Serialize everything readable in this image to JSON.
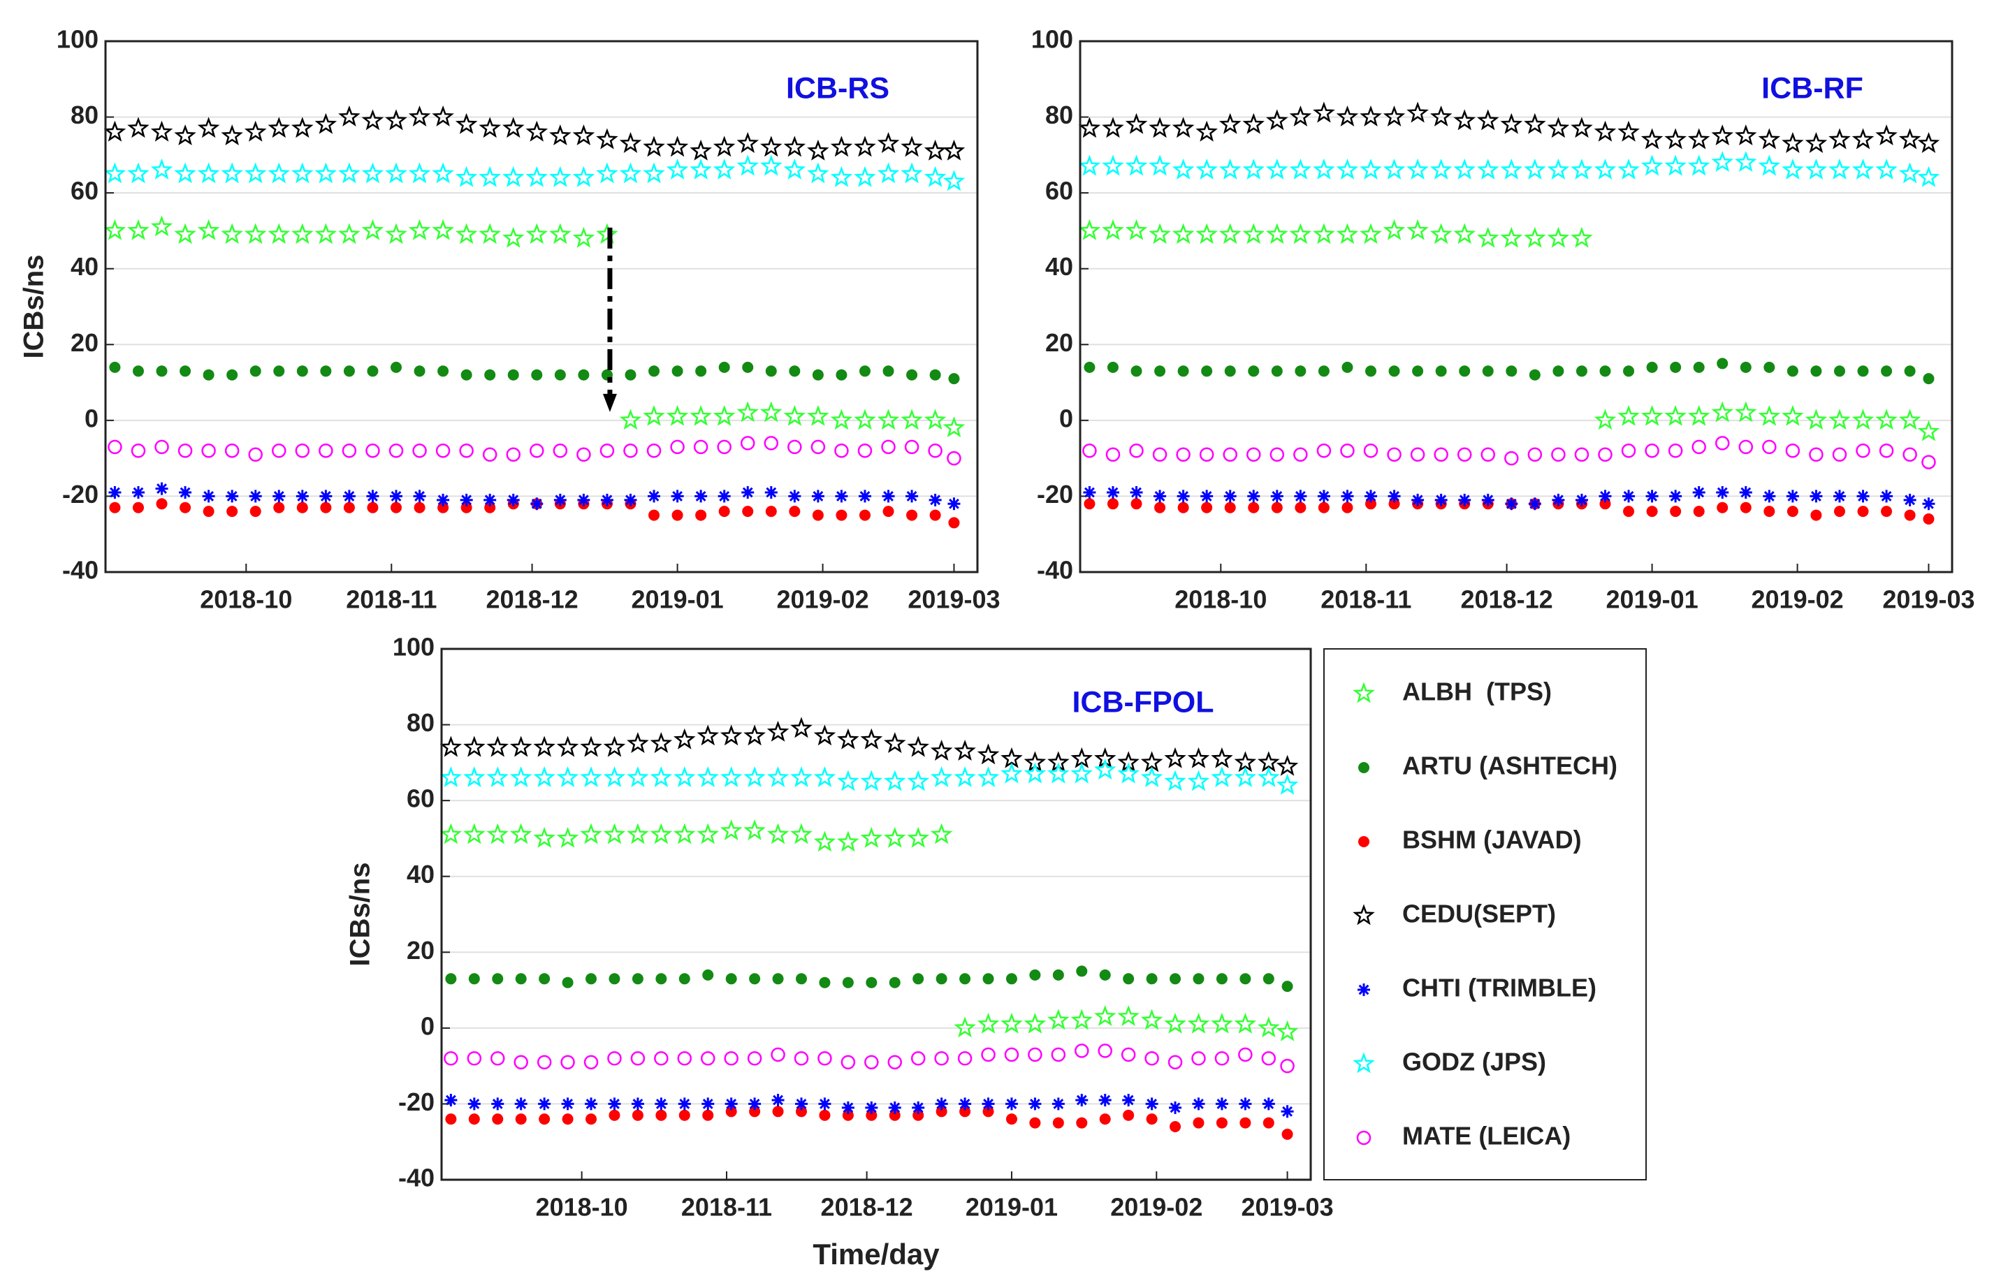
{
  "chart_data": [
    {
      "type": "scatter",
      "title": "ICB-RS",
      "ylabel": "ICBs/ns",
      "x": [
        2,
        7,
        12,
        17,
        22,
        27,
        32,
        37,
        42,
        47,
        52,
        57,
        62,
        67,
        72,
        77,
        82,
        87,
        92,
        97,
        102,
        107,
        112,
        117,
        122,
        127,
        132,
        137,
        142,
        147,
        152,
        157,
        162,
        167,
        172,
        177,
        181
      ],
      "xlim": [
        0,
        186
      ],
      "xticks": [
        {
          "value": 30,
          "label": "2018-10"
        },
        {
          "value": 61,
          "label": "2018-11"
        },
        {
          "value": 91,
          "label": "2018-12"
        },
        {
          "value": 122,
          "label": "2019-01"
        },
        {
          "value": 153,
          "label": "2019-02"
        },
        {
          "value": 181,
          "label": "2019-03"
        }
      ],
      "ylim": [
        -40,
        100
      ],
      "yticks": [
        -40,
        -20,
        0,
        20,
        40,
        60,
        80,
        100
      ],
      "grid": true,
      "series": [
        {
          "color": "#33ff33",
          "marker": "star",
          "values": [
            50,
            50,
            51,
            49,
            50,
            49,
            49,
            49,
            49,
            49,
            49,
            50,
            49,
            50,
            50,
            49,
            49,
            48,
            49,
            49,
            48,
            49,
            0,
            1,
            1,
            1,
            1,
            2,
            2,
            1,
            1,
            0,
            0,
            0,
            0,
            0,
            -2
          ]
        },
        {
          "color": "#138a13",
          "marker": "dot",
          "values": [
            14,
            13,
            13,
            13,
            12,
            12,
            13,
            13,
            13,
            13,
            13,
            13,
            14,
            13,
            13,
            12,
            12,
            12,
            12,
            12,
            12,
            12,
            12,
            13,
            13,
            13,
            14,
            14,
            13,
            13,
            12,
            12,
            13,
            13,
            12,
            12,
            11
          ]
        },
        {
          "color": "#ff0000",
          "marker": "dot",
          "values": [
            -23,
            -23,
            -22,
            -23,
            -24,
            -24,
            -24,
            -23,
            -23,
            -23,
            -23,
            -23,
            -23,
            -23,
            -23,
            -23,
            -23,
            -22,
            -22,
            -22,
            -22,
            -22,
            -22,
            -25,
            -25,
            -25,
            -24,
            -24,
            -24,
            -24,
            -25,
            -25,
            -25,
            -24,
            -25,
            -25,
            -27
          ]
        },
        {
          "color": "#000000",
          "marker": "star",
          "values": [
            76,
            77,
            76,
            75,
            77,
            75,
            76,
            77,
            77,
            78,
            80,
            79,
            79,
            80,
            80,
            78,
            77,
            77,
            76,
            75,
            75,
            74,
            73,
            72,
            72,
            71,
            72,
            73,
            72,
            72,
            71,
            72,
            72,
            73,
            72,
            71,
            71
          ]
        },
        {
          "color": "#0000ff",
          "marker": "asterisk",
          "values": [
            -19,
            -19,
            -18,
            -19,
            -20,
            -20,
            -20,
            -20,
            -20,
            -20,
            -20,
            -20,
            -20,
            -20,
            -21,
            -21,
            -21,
            -21,
            -22,
            -21,
            -21,
            -21,
            -21,
            -20,
            -20,
            -20,
            -20,
            -19,
            -19,
            -20,
            -20,
            -20,
            -20,
            -20,
            -20,
            -21,
            -22
          ]
        },
        {
          "color": "#00ffff",
          "marker": "star",
          "values": [
            65,
            65,
            66,
            65,
            65,
            65,
            65,
            65,
            65,
            65,
            65,
            65,
            65,
            65,
            65,
            64,
            64,
            64,
            64,
            64,
            64,
            65,
            65,
            65,
            66,
            66,
            66,
            67,
            67,
            66,
            65,
            64,
            64,
            65,
            65,
            64,
            63
          ]
        },
        {
          "color": "#ff00ff",
          "marker": "ring",
          "values": [
            -7,
            -8,
            -7,
            -8,
            -8,
            -8,
            -9,
            -8,
            -8,
            -8,
            -8,
            -8,
            -8,
            -8,
            -8,
            -8,
            -9,
            -9,
            -8,
            -8,
            -9,
            -8,
            -8,
            -8,
            -7,
            -7,
            -7,
            -6,
            -6,
            -7,
            -7,
            -8,
            -8,
            -7,
            -7,
            -8,
            -10
          ]
        }
      ]
    },
    {
      "type": "scatter",
      "title": "ICB-RF",
      "x": [
        2,
        7,
        12,
        17,
        22,
        27,
        32,
        37,
        42,
        47,
        52,
        57,
        62,
        67,
        72,
        77,
        82,
        87,
        92,
        97,
        102,
        107,
        112,
        117,
        122,
        127,
        132,
        137,
        142,
        147,
        152,
        157,
        162,
        167,
        172,
        177,
        181
      ],
      "xlim": [
        0,
        186
      ],
      "xticks": [
        {
          "value": 30,
          "label": "2018-10"
        },
        {
          "value": 61,
          "label": "2018-11"
        },
        {
          "value": 91,
          "label": "2018-12"
        },
        {
          "value": 122,
          "label": "2019-01"
        },
        {
          "value": 153,
          "label": "2019-02"
        },
        {
          "value": 181,
          "label": "2019-03"
        }
      ],
      "ylim": [
        -40,
        100
      ],
      "yticks": [
        -40,
        -20,
        0,
        20,
        40,
        60,
        80,
        100
      ],
      "grid": true,
      "series": [
        {
          "color": "#33ff33",
          "marker": "star",
          "values": [
            50,
            50,
            50,
            49,
            49,
            49,
            49,
            49,
            49,
            49,
            49,
            49,
            49,
            50,
            50,
            49,
            49,
            48,
            48,
            48,
            48,
            48,
            0,
            1,
            1,
            1,
            1,
            2,
            2,
            1,
            1,
            0,
            0,
            0,
            0,
            0,
            -3
          ]
        },
        {
          "color": "#138a13",
          "marker": "dot",
          "values": [
            14,
            14,
            13,
            13,
            13,
            13,
            13,
            13,
            13,
            13,
            13,
            14,
            13,
            13,
            13,
            13,
            13,
            13,
            13,
            12,
            13,
            13,
            13,
            13,
            14,
            14,
            14,
            15,
            14,
            14,
            13,
            13,
            13,
            13,
            13,
            13,
            11
          ]
        },
        {
          "color": "#ff0000",
          "marker": "dot",
          "values": [
            -22,
            -22,
            -22,
            -23,
            -23,
            -23,
            -23,
            -23,
            -23,
            -23,
            -23,
            -23,
            -22,
            -22,
            -22,
            -22,
            -22,
            -22,
            -22,
            -22,
            -22,
            -22,
            -22,
            -24,
            -24,
            -24,
            -24,
            -23,
            -23,
            -24,
            -24,
            -25,
            -24,
            -24,
            -24,
            -25,
            -26
          ]
        },
        {
          "color": "#000000",
          "marker": "star",
          "values": [
            77,
            77,
            78,
            77,
            77,
            76,
            78,
            78,
            79,
            80,
            81,
            80,
            80,
            80,
            81,
            80,
            79,
            79,
            78,
            78,
            77,
            77,
            76,
            76,
            74,
            74,
            74,
            75,
            75,
            74,
            73,
            73,
            74,
            74,
            75,
            74,
            73
          ]
        },
        {
          "color": "#0000ff",
          "marker": "asterisk",
          "values": [
            -19,
            -19,
            -19,
            -20,
            -20,
            -20,
            -20,
            -20,
            -20,
            -20,
            -20,
            -20,
            -20,
            -20,
            -21,
            -21,
            -21,
            -21,
            -22,
            -22,
            -21,
            -21,
            -20,
            -20,
            -20,
            -20,
            -19,
            -19,
            -19,
            -20,
            -20,
            -20,
            -20,
            -20,
            -20,
            -21,
            -22
          ]
        },
        {
          "color": "#00ffff",
          "marker": "star",
          "values": [
            67,
            67,
            67,
            67,
            66,
            66,
            66,
            66,
            66,
            66,
            66,
            66,
            66,
            66,
            66,
            66,
            66,
            66,
            66,
            66,
            66,
            66,
            66,
            66,
            67,
            67,
            67,
            68,
            68,
            67,
            66,
            66,
            66,
            66,
            66,
            65,
            64
          ]
        },
        {
          "color": "#ff00ff",
          "marker": "ring",
          "values": [
            -8,
            -9,
            -8,
            -9,
            -9,
            -9,
            -9,
            -9,
            -9,
            -9,
            -8,
            -8,
            -8,
            -9,
            -9,
            -9,
            -9,
            -9,
            -10,
            -9,
            -9,
            -9,
            -9,
            -8,
            -8,
            -8,
            -7,
            -6,
            -7,
            -7,
            -8,
            -9,
            -9,
            -8,
            -8,
            -9,
            -11
          ]
        }
      ]
    },
    {
      "type": "scatter",
      "title": "ICB-FPOL",
      "ylabel": "ICBs/ns",
      "xlabel": "Time/day",
      "x": [
        2,
        7,
        12,
        17,
        22,
        27,
        32,
        37,
        42,
        47,
        52,
        57,
        62,
        67,
        72,
        77,
        82,
        87,
        92,
        97,
        102,
        107,
        112,
        117,
        122,
        127,
        132,
        137,
        142,
        147,
        152,
        157,
        162,
        167,
        172,
        177,
        181
      ],
      "xlim": [
        0,
        186
      ],
      "xticks": [
        {
          "value": 30,
          "label": "2018-10"
        },
        {
          "value": 61,
          "label": "2018-11"
        },
        {
          "value": 91,
          "label": "2018-12"
        },
        {
          "value": 122,
          "label": "2019-01"
        },
        {
          "value": 153,
          "label": "2019-02"
        },
        {
          "value": 181,
          "label": "2019-03"
        }
      ],
      "ylim": [
        -40,
        100
      ],
      "yticks": [
        -40,
        -20,
        0,
        20,
        40,
        60,
        80,
        100
      ],
      "grid": true,
      "series": [
        {
          "name": "ALBH  (TPS)",
          "color": "#33ff33",
          "marker": "star",
          "values": [
            51,
            51,
            51,
            51,
            50,
            50,
            51,
            51,
            51,
            51,
            51,
            51,
            52,
            52,
            51,
            51,
            49,
            49,
            50,
            50,
            50,
            51,
            0,
            1,
            1,
            1,
            2,
            2,
            3,
            3,
            2,
            1,
            1,
            1,
            1,
            0,
            -1
          ]
        },
        {
          "name": "ARTU (ASHTECH)",
          "color": "#138a13",
          "marker": "dot",
          "values": [
            13,
            13,
            13,
            13,
            13,
            12,
            13,
            13,
            13,
            13,
            13,
            14,
            13,
            13,
            13,
            13,
            12,
            12,
            12,
            12,
            13,
            13,
            13,
            13,
            13,
            14,
            14,
            15,
            14,
            13,
            13,
            13,
            13,
            13,
            13,
            13,
            11
          ]
        },
        {
          "name": "BSHM (JAVAD)",
          "color": "#ff0000",
          "marker": "dot",
          "values": [
            -24,
            -24,
            -24,
            -24,
            -24,
            -24,
            -24,
            -23,
            -23,
            -23,
            -23,
            -23,
            -22,
            -22,
            -22,
            -22,
            -23,
            -23,
            -23,
            -23,
            -23,
            -22,
            -22,
            -22,
            -24,
            -25,
            -25,
            -25,
            -24,
            -23,
            -24,
            -26,
            -25,
            -25,
            -25,
            -25,
            -28
          ]
        },
        {
          "name": "CEDU(SEPT)",
          "color": "#000000",
          "marker": "star",
          "values": [
            74,
            74,
            74,
            74,
            74,
            74,
            74,
            74,
            75,
            75,
            76,
            77,
            77,
            77,
            78,
            79,
            77,
            76,
            76,
            75,
            74,
            73,
            73,
            72,
            71,
            70,
            70,
            71,
            71,
            70,
            70,
            71,
            71,
            71,
            70,
            70,
            69
          ]
        },
        {
          "name": "CHTI (TRIMBLE)",
          "color": "#0000ff",
          "marker": "asterisk",
          "values": [
            -19,
            -20,
            -20,
            -20,
            -20,
            -20,
            -20,
            -20,
            -20,
            -20,
            -20,
            -20,
            -20,
            -20,
            -19,
            -20,
            -20,
            -21,
            -21,
            -21,
            -21,
            -20,
            -20,
            -20,
            -20,
            -20,
            -20,
            -19,
            -19,
            -19,
            -20,
            -21,
            -20,
            -20,
            -20,
            -20,
            -22
          ]
        },
        {
          "name": "GODZ (JPS)",
          "color": "#00ffff",
          "marker": "star",
          "values": [
            66,
            66,
            66,
            66,
            66,
            66,
            66,
            66,
            66,
            66,
            66,
            66,
            66,
            66,
            66,
            66,
            66,
            65,
            65,
            65,
            65,
            66,
            66,
            66,
            67,
            67,
            67,
            67,
            68,
            67,
            66,
            65,
            65,
            66,
            66,
            66,
            64
          ]
        },
        {
          "name": "MATE (LEICA)",
          "color": "#ff00ff",
          "marker": "ring",
          "values": [
            -8,
            -8,
            -8,
            -9,
            -9,
            -9,
            -9,
            -8,
            -8,
            -8,
            -8,
            -8,
            -8,
            -8,
            -7,
            -8,
            -8,
            -9,
            -9,
            -9,
            -8,
            -8,
            -8,
            -7,
            -7,
            -7,
            -7,
            -6,
            -6,
            -7,
            -8,
            -9,
            -8,
            -8,
            -7,
            -8,
            -10
          ]
        }
      ]
    }
  ]
}
